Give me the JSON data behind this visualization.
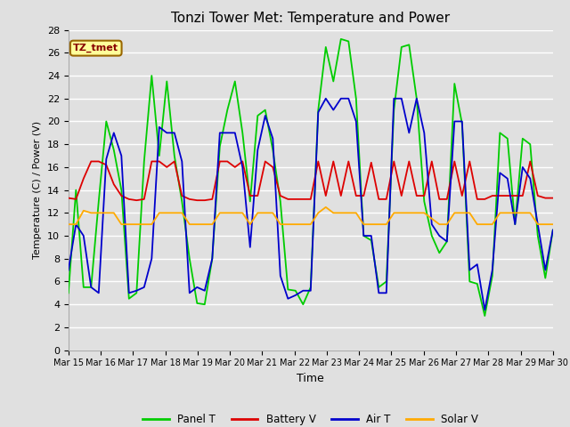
{
  "title": "Tonzi Tower Met: Temperature and Power",
  "xlabel": "Time",
  "ylabel": "Temperature (C) / Power (V)",
  "ylim": [
    0,
    28
  ],
  "yticks": [
    0,
    2,
    4,
    6,
    8,
    10,
    12,
    14,
    16,
    18,
    20,
    22,
    24,
    26,
    28
  ],
  "xtick_labels": [
    "Mar 15",
    "Mar 16",
    "Mar 17",
    "Mar 18",
    "Mar 19",
    "Mar 20",
    "Mar 21",
    "Mar 22",
    "Mar 23",
    "Mar 24",
    "Mar 25",
    "Mar 26",
    "Mar 27",
    "Mar 28",
    "Mar 29",
    "Mar 30"
  ],
  "legend_entries": [
    "Panel T",
    "Battery V",
    "Air T",
    "Solar V"
  ],
  "legend_colors": [
    "#00cc00",
    "#dd0000",
    "#0000cc",
    "#ffaa00"
  ],
  "annotation_text": "TZ_tmet",
  "annotation_color": "#880000",
  "annotation_bg": "#ffff99",
  "annotation_edge": "#996600",
  "bg_color": "#e0e0e0",
  "grid_color": "#ffffff",
  "panel_T": [
    5.0,
    14.0,
    5.5,
    5.5,
    13.0,
    20.0,
    17.5,
    14.0,
    4.5,
    5.0,
    16.5,
    24.0,
    17.0,
    23.5,
    17.0,
    13.0,
    8.0,
    4.1,
    4.0,
    8.0,
    17.8,
    21.0,
    23.5,
    19.0,
    13.0,
    20.5,
    21.0,
    17.5,
    13.0,
    5.3,
    5.2,
    4.0,
    5.5,
    21.0,
    26.5,
    23.5,
    27.2,
    27.0,
    22.0,
    10.0,
    9.6,
    5.5,
    6.0,
    21.0,
    26.5,
    26.7,
    22.0,
    13.0,
    10.0,
    8.5,
    9.5,
    23.3,
    19.8,
    6.0,
    5.8,
    3.0,
    6.5,
    19.0,
    18.5,
    11.0,
    18.5,
    18.0,
    10.0,
    6.3,
    10.5
  ],
  "battery_V": [
    13.3,
    13.2,
    15.0,
    16.5,
    16.5,
    16.2,
    14.5,
    13.5,
    13.2,
    13.1,
    13.2,
    16.5,
    16.5,
    16.0,
    16.5,
    13.5,
    13.2,
    13.1,
    13.1,
    13.2,
    16.5,
    16.5,
    16.0,
    16.5,
    13.5,
    13.5,
    16.5,
    16.0,
    13.5,
    13.2,
    13.2,
    13.2,
    13.2,
    16.5,
    13.5,
    16.5,
    13.5,
    16.5,
    13.5,
    13.5,
    16.4,
    13.2,
    13.2,
    16.5,
    13.5,
    16.5,
    13.5,
    13.5,
    16.5,
    13.2,
    13.2,
    16.5,
    13.5,
    16.5,
    13.2,
    13.2,
    13.5,
    13.5,
    13.5,
    13.5,
    13.5,
    16.5,
    13.5,
    13.3,
    13.3
  ],
  "air_T": [
    7.0,
    11.0,
    10.0,
    5.5,
    5.0,
    16.7,
    19.0,
    17.0,
    5.0,
    5.2,
    5.5,
    8.0,
    19.5,
    19.0,
    19.0,
    16.5,
    5.0,
    5.5,
    5.2,
    8.0,
    19.0,
    19.0,
    19.0,
    16.0,
    9.0,
    17.5,
    20.5,
    18.5,
    6.5,
    4.5,
    4.8,
    5.2,
    5.2,
    20.8,
    22.0,
    21.0,
    22.0,
    22.0,
    20.0,
    10.0,
    10.0,
    5.0,
    5.0,
    22.0,
    22.0,
    19.0,
    22.0,
    19.0,
    11.0,
    10.0,
    9.5,
    20.0,
    20.0,
    7.0,
    7.5,
    3.5,
    7.0,
    15.5,
    15.0,
    11.0,
    16.0,
    15.0,
    11.0,
    7.0,
    10.5
  ],
  "solar_V": [
    11.0,
    11.0,
    12.2,
    12.0,
    12.0,
    12.0,
    12.0,
    11.0,
    11.0,
    11.0,
    11.0,
    11.0,
    12.0,
    12.0,
    12.0,
    12.0,
    11.0,
    11.0,
    11.0,
    11.0,
    12.0,
    12.0,
    12.0,
    12.0,
    11.0,
    12.0,
    12.0,
    12.0,
    11.0,
    11.0,
    11.0,
    11.0,
    11.0,
    12.0,
    12.5,
    12.0,
    12.0,
    12.0,
    12.0,
    11.0,
    11.0,
    11.0,
    11.0,
    12.0,
    12.0,
    12.0,
    12.0,
    12.0,
    11.5,
    11.0,
    11.0,
    12.0,
    12.0,
    12.0,
    11.0,
    11.0,
    11.0,
    12.0,
    12.0,
    12.0,
    12.0,
    12.0,
    11.0,
    11.0,
    11.0
  ]
}
